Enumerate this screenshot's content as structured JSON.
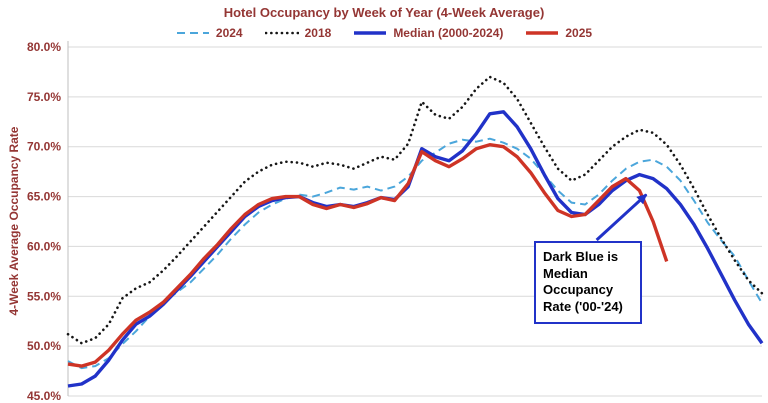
{
  "chart_data": {
    "type": "line",
    "title": "Hotel Occupancy by Week of Year (4-Week Average)",
    "ylabel": "4-Week Average Occupancy Rate",
    "xlabel": "",
    "x_unit": "week of year",
    "grid": "horizontal",
    "legend_position": "top",
    "ylim": [
      45,
      80
    ],
    "yticks": [
      80,
      75,
      70,
      65,
      60,
      55,
      50,
      45
    ],
    "ytick_labels": [
      "80.0%",
      "75.0%",
      "70.0%",
      "65.0%",
      "60.0%",
      "55.0%",
      "50.0%",
      "45.0%"
    ],
    "x": [
      1,
      2,
      3,
      4,
      5,
      6,
      7,
      8,
      9,
      10,
      11,
      12,
      13,
      14,
      15,
      16,
      17,
      18,
      19,
      20,
      21,
      22,
      23,
      24,
      25,
      26,
      27,
      28,
      29,
      30,
      31,
      32,
      33,
      34,
      35,
      36,
      37,
      38,
      39,
      40,
      41,
      42,
      43,
      44,
      45,
      46,
      47,
      48,
      49,
      50,
      51,
      52
    ],
    "series": [
      {
        "name": "2024",
        "color": "#4BA6DB",
        "style": "dashed",
        "width": 2,
        "values": [
          48.5,
          47.8,
          48.0,
          48.8,
          50.2,
          51.5,
          53.0,
          54.4,
          55.4,
          56.4,
          57.8,
          59.2,
          60.8,
          62.2,
          63.4,
          64.2,
          64.8,
          65.2,
          65.0,
          65.4,
          65.9,
          65.7,
          66.0,
          65.6,
          66.0,
          67.0,
          68.6,
          69.4,
          70.3,
          70.7,
          70.5,
          70.8,
          70.4,
          69.8,
          68.8,
          67.2,
          65.6,
          64.4,
          64.2,
          65.2,
          66.6,
          67.8,
          68.5,
          68.7,
          68.0,
          66.6,
          64.6,
          62.4,
          60.6,
          59.0,
          56.6,
          54.3
        ]
      },
      {
        "name": "2018",
        "color": "#161616",
        "style": "dotted",
        "width": 2.6,
        "values": [
          51.2,
          50.3,
          50.8,
          52.2,
          54.8,
          55.8,
          56.4,
          57.6,
          59.0,
          60.5,
          62.0,
          63.5,
          65.0,
          66.5,
          67.5,
          68.2,
          68.5,
          68.4,
          68.0,
          68.4,
          68.2,
          67.8,
          68.4,
          69.0,
          68.7,
          70.3,
          74.5,
          73.2,
          72.8,
          74.0,
          75.8,
          77.0,
          76.4,
          74.8,
          72.4,
          70.0,
          67.8,
          66.6,
          67.2,
          68.6,
          70.0,
          71.0,
          71.7,
          71.4,
          70.2,
          68.2,
          65.8,
          63.2,
          60.8,
          58.6,
          56.6,
          55.3
        ]
      },
      {
        "name": "Median (2000-2024)",
        "color": "#2132C8",
        "style": "solid",
        "width": 3.4,
        "values": [
          46.0,
          46.2,
          47.0,
          48.6,
          50.6,
          52.2,
          53.0,
          54.2,
          55.6,
          57.0,
          58.5,
          60.0,
          61.5,
          63.0,
          64.0,
          64.6,
          64.9,
          65.0,
          64.4,
          64.0,
          64.2,
          64.0,
          64.4,
          64.9,
          64.7,
          66.0,
          69.8,
          69.0,
          68.6,
          69.6,
          71.3,
          73.3,
          73.5,
          72.0,
          69.8,
          67.2,
          64.8,
          63.4,
          63.2,
          64.2,
          65.6,
          66.6,
          67.2,
          66.8,
          65.8,
          64.2,
          62.2,
          59.8,
          57.2,
          54.6,
          52.2,
          50.3
        ]
      },
      {
        "name": "2025",
        "color": "#CE3426",
        "style": "solid",
        "width": 3.4,
        "values": [
          48.2,
          48.0,
          48.4,
          49.6,
          51.2,
          52.6,
          53.4,
          54.4,
          55.8,
          57.2,
          58.8,
          60.2,
          61.8,
          63.2,
          64.2,
          64.8,
          65.0,
          65.0,
          64.2,
          63.8,
          64.2,
          63.9,
          64.3,
          64.9,
          64.6,
          66.3,
          69.5,
          68.6,
          68.0,
          68.8,
          69.8,
          70.2,
          70.0,
          69.0,
          67.4,
          65.4,
          63.6,
          63.0,
          63.2,
          64.6,
          66.0,
          66.8,
          65.6,
          62.5,
          58.5,
          null,
          null,
          null,
          null,
          null,
          null,
          null
        ]
      }
    ],
    "annotation": {
      "text": "Dark Blue is Median Occupancy Rate ('00-'24)",
      "arrow_target_week": 43.5,
      "arrow_target_value": 65.2
    }
  },
  "colors": {
    "title_text": "#943634",
    "axis_text": "#943634",
    "grid": "#D9D9D9",
    "axis_line": "#BFBFBF",
    "annotation_border": "#2132C8"
  }
}
